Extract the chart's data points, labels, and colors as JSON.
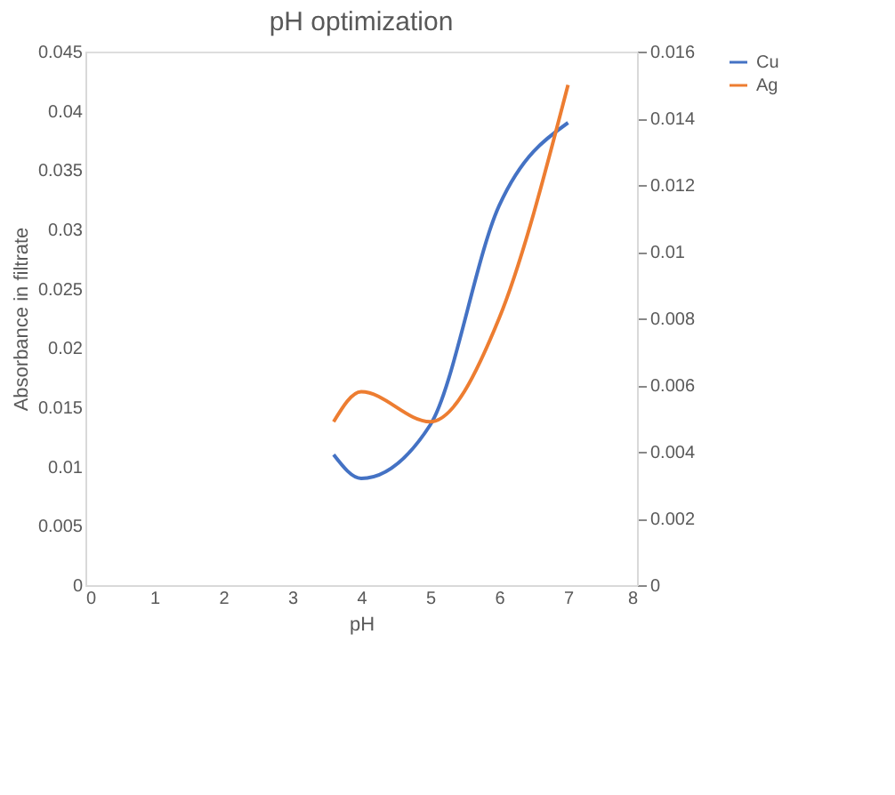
{
  "chart_data": {
    "type": "line",
    "title": "pH optimization",
    "xlabel": "pH",
    "ylabel": "Absorbance in filtrate",
    "x": [
      3.6,
      4,
      5,
      6,
      7
    ],
    "series": [
      {
        "name": "Cu",
        "color": "#4472c4",
        "values": [
          0.011,
          0.009,
          0.0135,
          0.032,
          0.039
        ]
      },
      {
        "name": "Ag",
        "color": "#ed7d31",
        "axis": "y2",
        "values": [
          0.0049,
          0.0058,
          0.0049,
          0.008,
          0.015
        ]
      }
    ],
    "xlim": [
      0,
      8
    ],
    "xticks": [
      0,
      1,
      2,
      3,
      4,
      5,
      6,
      7,
      8
    ],
    "ylim": [
      0,
      0.045
    ],
    "yticks": [
      0,
      0.005,
      0.01,
      0.015,
      0.02,
      0.025,
      0.03,
      0.035,
      0.04,
      0.045
    ],
    "y2lim": [
      0,
      0.016
    ],
    "y2ticks": [
      0,
      0.002,
      0.004,
      0.006,
      0.008,
      0.01,
      0.012,
      0.014,
      0.016
    ],
    "grid": false,
    "legend": "right",
    "marker": "none",
    "line_style": "solid"
  }
}
